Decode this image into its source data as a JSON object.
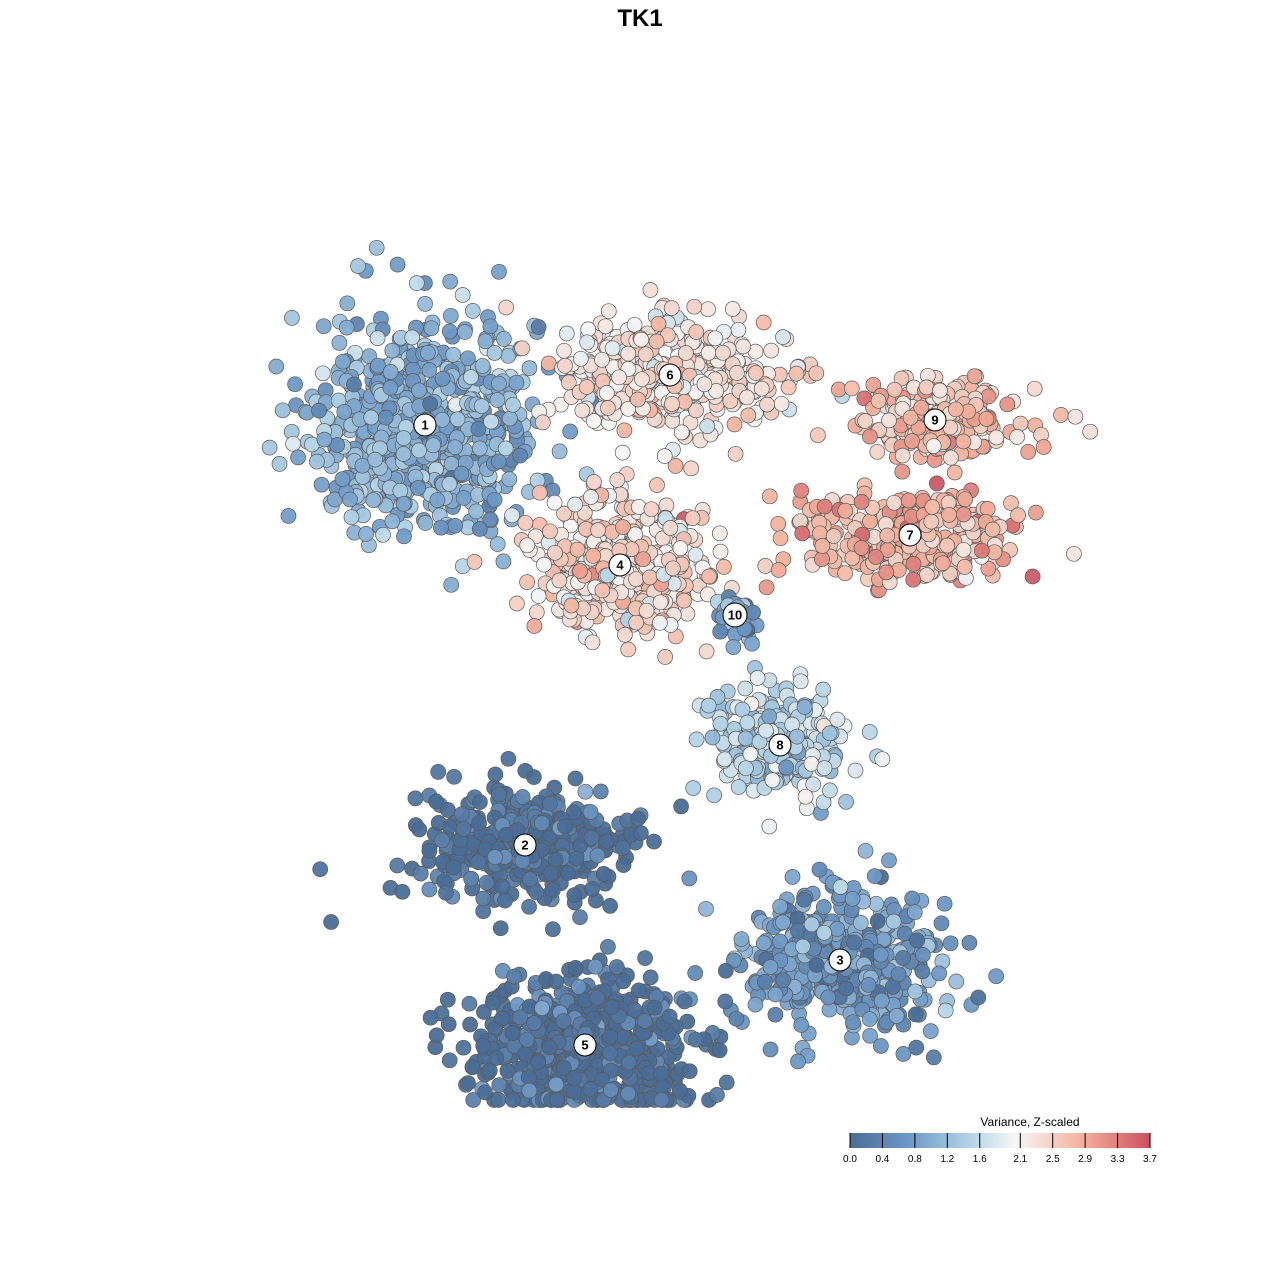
{
  "chart_data": {
    "type": "scatter",
    "title": "TK1",
    "xlabel": "",
    "ylabel": "",
    "xlim": [
      -50,
      50
    ],
    "ylim": [
      -50,
      50
    ],
    "grid": false,
    "legend": {
      "title": "Variance, Z-scaled",
      "placement": "bottom-right",
      "ticks": [
        "0.0",
        "0.4",
        "0.8",
        "1.2",
        "1.6",
        "2.1",
        "2.5",
        "2.9",
        "3.3",
        "3.7"
      ],
      "tick_values": [
        0.0,
        0.4,
        0.8,
        1.2,
        1.6,
        2.1,
        2.5,
        2.9,
        3.3,
        3.7
      ],
      "min": 0.0,
      "max": 3.7
    },
    "colors": {
      "low": "#4a6d96",
      "mid_low": "#6e9ac7",
      "mid": "#b3d3e8",
      "center": "#f7f7f7",
      "mid_high": "#f4b09a",
      "high": "#c9505e",
      "outline": "#5a5a5a"
    },
    "clusters": [
      {
        "label": "1",
        "x": -21.5,
        "y": 21.5,
        "value": 1.0,
        "spread": [
          10,
          10
        ],
        "n": 700
      },
      {
        "label": "2",
        "x": -11.5,
        "y": -20.5,
        "value": 0.05,
        "spread": [
          9,
          5
        ],
        "n": 450
      },
      {
        "label": "3",
        "x": 20.0,
        "y": -32.0,
        "value": 0.7,
        "spread": [
          9,
          7
        ],
        "n": 450
      },
      {
        "label": "4",
        "x": -2.0,
        "y": 7.5,
        "value": 2.4,
        "spread": [
          8,
          6
        ],
        "n": 420
      },
      {
        "label": "5",
        "x": -5.5,
        "y": -40.5,
        "value": 0.05,
        "spread": [
          10,
          6
        ],
        "n": 650
      },
      {
        "label": "6",
        "x": 3.0,
        "y": 26.5,
        "value": 2.3,
        "spread": [
          10,
          5
        ],
        "n": 400
      },
      {
        "label": "7",
        "x": 27.0,
        "y": 10.5,
        "value": 2.8,
        "spread": [
          10,
          4
        ],
        "n": 350
      },
      {
        "label": "8",
        "x": 14.0,
        "y": -10.5,
        "value": 1.5,
        "spread": [
          6,
          5
        ],
        "n": 260
      },
      {
        "label": "9",
        "x": 29.5,
        "y": 22.0,
        "value": 2.6,
        "spread": [
          8,
          3.5
        ],
        "n": 220
      },
      {
        "label": "10",
        "x": 9.5,
        "y": 2.5,
        "value": 0.8,
        "spread": [
          1.5,
          2
        ],
        "n": 50
      }
    ]
  }
}
